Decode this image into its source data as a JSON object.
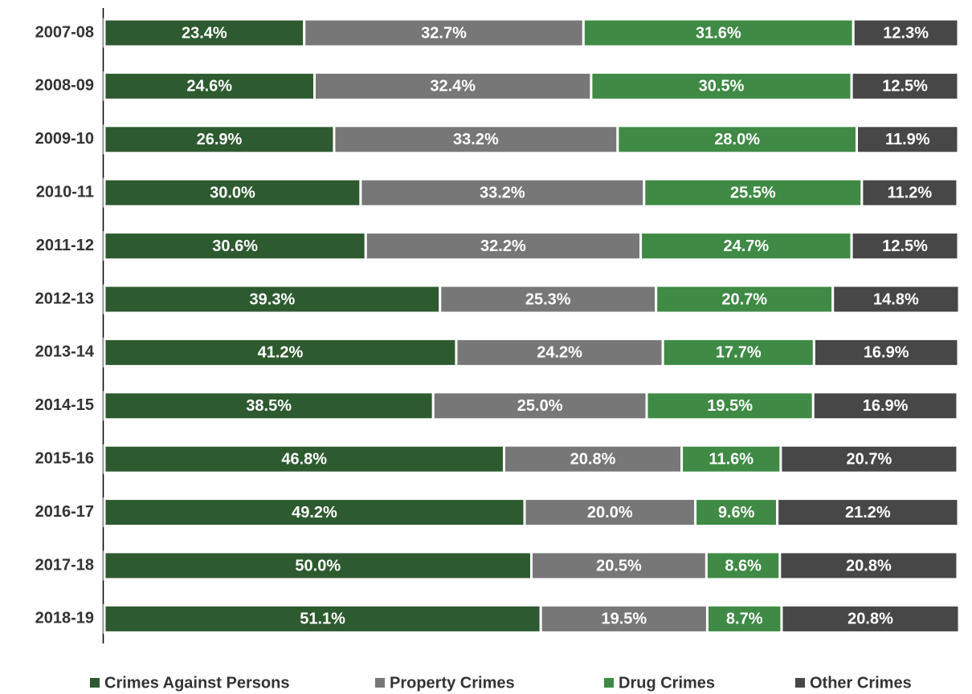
{
  "chart_data": {
    "type": "bar",
    "orientation": "horizontal",
    "stacked": true,
    "categories": [
      "2007-08",
      "2008-09",
      "2009-10",
      "2010-11",
      "2011-12",
      "2012-13",
      "2013-14",
      "2014-15",
      "2015-16",
      "2016-17",
      "2017-18",
      "2018-19"
    ],
    "xlim": [
      0,
      100
    ],
    "legend": "bottom",
    "series": [
      {
        "name": "Crimes Against Persons",
        "color": "#2e5a30",
        "values": [
          23.4,
          24.6,
          26.9,
          30.0,
          30.6,
          39.3,
          41.2,
          38.5,
          46.8,
          49.2,
          50.0,
          51.1
        ],
        "value_labels": [
          "23.4%",
          "24.6%",
          "26.9%",
          "30.0%",
          "30.6%",
          "39.3%",
          "41.2%",
          "38.5%",
          "46.8%",
          "49.2%",
          "50.0%",
          "51.1%"
        ]
      },
      {
        "name": "Property Crimes",
        "color": "#777777",
        "values": [
          32.7,
          32.4,
          33.2,
          33.2,
          32.2,
          25.3,
          24.2,
          25.0,
          20.8,
          20.0,
          20.5,
          19.5
        ],
        "value_labels": [
          "32.7%",
          "32.4%",
          "33.2%",
          "33.2%",
          "32.2%",
          "25.3%",
          "24.2%",
          "25.0%",
          "20.8%",
          "20.0%",
          "20.5%",
          "19.5%"
        ]
      },
      {
        "name": "Drug Crimes",
        "color": "#3f8a45",
        "values": [
          31.6,
          30.5,
          28.0,
          25.5,
          24.7,
          20.7,
          17.7,
          19.5,
          11.6,
          9.6,
          8.6,
          8.7
        ],
        "value_labels": [
          "31.6%",
          "30.5%",
          "28.0%",
          "25.5%",
          "24.7%",
          "20.7%",
          "17.7%",
          "19.5%",
          "11.6%",
          "9.6%",
          "8.6%",
          "8.7%"
        ]
      },
      {
        "name": "Other Crimes",
        "color": "#474747",
        "values": [
          12.3,
          12.5,
          11.9,
          11.2,
          12.5,
          14.8,
          16.9,
          16.9,
          20.7,
          21.2,
          20.8,
          20.8
        ],
        "value_labels": [
          "12.3%",
          "12.5%",
          "11.9%",
          "11.2%",
          "12.5%",
          "14.8%",
          "16.9%",
          "16.9%",
          "20.7%",
          "21.2%",
          "20.8%",
          "20.8%"
        ]
      }
    ]
  }
}
